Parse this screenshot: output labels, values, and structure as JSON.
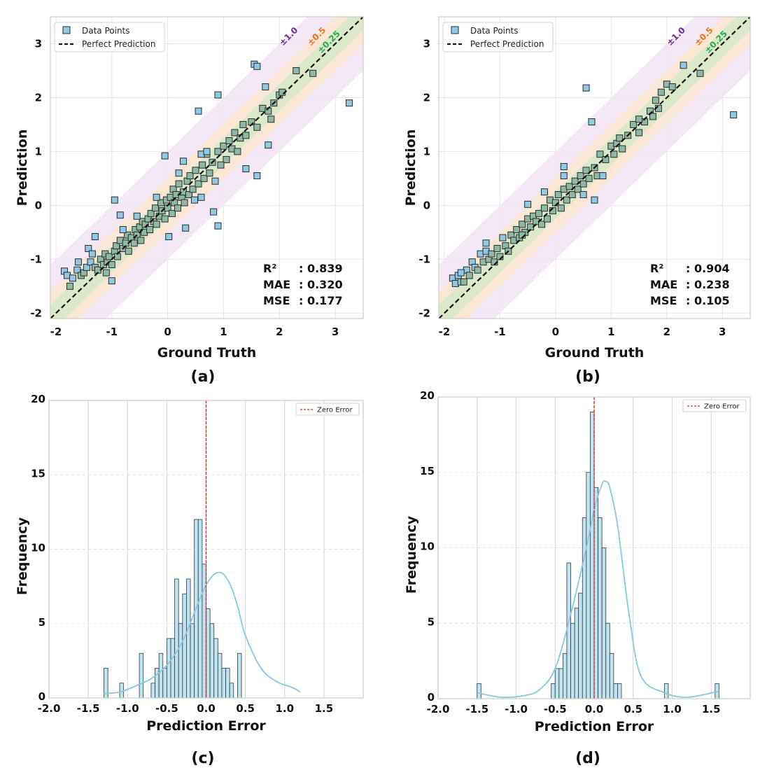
{
  "colors": {
    "point_fill": "#8ec9e6",
    "point_in_band_fill": "#8fb8a6",
    "point_stroke": "#2b2b2b",
    "band_1": "#f3e4f4",
    "band_05": "#fbe6cf",
    "band_025": "#d6e8c8",
    "label_1": "#6a2c9e",
    "label_05": "#e8731f",
    "label_025": "#1fae4a",
    "hist_fill": "#bfe4f0",
    "kde_line": "#86c8e3",
    "zero_line": "#d62728",
    "grid": "#d9d9d9"
  },
  "panels": [
    "(a)",
    "(b)",
    "(c)",
    "(d)"
  ],
  "chart_data": [
    {
      "id": "a",
      "type": "scatter",
      "panel_label": "(a)",
      "xlabel": "Ground Truth",
      "ylabel": "Prediction",
      "xlim": [
        -2.1,
        3.5
      ],
      "ylim": [
        -2.1,
        3.5
      ],
      "xticks": [
        "-2",
        "-1",
        "0",
        "1",
        "2",
        "3"
      ],
      "yticks": [
        "-2",
        "-1",
        "0",
        "1",
        "2",
        "3"
      ],
      "legend": [
        "Data Points",
        "Perfect Prediction"
      ],
      "legend_position": "top-left",
      "bands": [
        "±1.0",
        "±0.5",
        "±0.25"
      ],
      "metrics": [
        {
          "name": "R²",
          "value": ": 0.839"
        },
        {
          "name": "MAE",
          "value": ": 0.320"
        },
        {
          "name": "MSE",
          "value": ": 0.177"
        }
      ],
      "outliers": [
        [
          -0.95,
          0.1
        ],
        [
          0.9,
          -0.38
        ],
        [
          3.25,
          1.9
        ],
        [
          0.9,
          2.05
        ],
        [
          0.55,
          1.75
        ],
        [
          1.8,
          1.12
        ],
        [
          1.4,
          0.68
        ],
        [
          1.6,
          0.55
        ],
        [
          -0.05,
          0.92
        ],
        [
          0.28,
          0.82
        ],
        [
          0.7,
          1.0
        ],
        [
          1.75,
          2.2
        ],
        [
          -1.0,
          -1.4
        ],
        [
          0.32,
          -0.42
        ],
        [
          -0.85,
          -0.18
        ],
        [
          0.02,
          -0.58
        ],
        [
          1.55,
          2.62
        ],
        [
          1.6,
          2.58
        ],
        [
          0.82,
          -0.12
        ],
        [
          -1.3,
          -0.58
        ]
      ],
      "points": [
        [
          -1.85,
          -1.22
        ],
        [
          -1.8,
          -1.3
        ],
        [
          -1.75,
          -1.5
        ],
        [
          -1.7,
          -1.35
        ],
        [
          -1.62,
          -1.2
        ],
        [
          -1.55,
          -1.3
        ],
        [
          -1.5,
          -1.25
        ],
        [
          -1.45,
          -1.15
        ],
        [
          -1.42,
          -0.8
        ],
        [
          -1.38,
          -1.05
        ],
        [
          -1.35,
          -0.9
        ],
        [
          -1.3,
          -1.15
        ],
        [
          -1.25,
          -1.2
        ],
        [
          -1.2,
          -1.0
        ],
        [
          -1.15,
          -1.1
        ],
        [
          -1.12,
          -0.9
        ],
        [
          -1.08,
          -1.05
        ],
        [
          -1.05,
          -0.95
        ],
        [
          -1.0,
          -1.1
        ],
        [
          -0.95,
          -0.85
        ],
        [
          -0.92,
          -0.75
        ],
        [
          -0.9,
          -0.95
        ],
        [
          -0.85,
          -0.65
        ],
        [
          -0.8,
          -0.8
        ],
        [
          -0.75,
          -0.7
        ],
        [
          -0.72,
          -0.55
        ],
        [
          -0.7,
          -0.85
        ],
        [
          -0.65,
          -0.6
        ],
        [
          -0.6,
          -0.7
        ],
        [
          -0.58,
          -0.45
        ],
        [
          -0.55,
          -0.55
        ],
        [
          -0.5,
          -0.4
        ],
        [
          -0.48,
          -0.65
        ],
        [
          -0.45,
          -0.3
        ],
        [
          -0.42,
          -0.5
        ],
        [
          -0.4,
          -0.35
        ],
        [
          -0.35,
          -0.25
        ],
        [
          -0.32,
          -0.45
        ],
        [
          -0.3,
          -0.15
        ],
        [
          -0.25,
          -0.3
        ],
        [
          -0.22,
          -0.05
        ],
        [
          -0.2,
          -0.35
        ],
        [
          -0.15,
          -0.2
        ],
        [
          -0.12,
          0.05
        ],
        [
          -0.1,
          -0.1
        ],
        [
          -0.05,
          -0.25
        ],
        [
          -0.02,
          0.1
        ],
        [
          0.0,
          -0.05
        ],
        [
          0.05,
          0.15
        ],
        [
          0.08,
          -0.15
        ],
        [
          0.1,
          0.3
        ],
        [
          0.12,
          0.05
        ],
        [
          0.15,
          0.2
        ],
        [
          0.18,
          -0.05
        ],
        [
          0.2,
          0.4
        ],
        [
          0.25,
          0.15
        ],
        [
          0.28,
          0.25
        ],
        [
          0.3,
          0.05
        ],
        [
          0.35,
          0.45
        ],
        [
          0.38,
          0.2
        ],
        [
          0.4,
          0.55
        ],
        [
          0.45,
          0.3
        ],
        [
          0.48,
          0.1
        ],
        [
          0.5,
          0.65
        ],
        [
          0.55,
          0.4
        ],
        [
          0.6,
          0.15
        ],
        [
          0.62,
          0.75
        ],
        [
          0.65,
          0.5
        ],
        [
          0.7,
          0.95
        ],
        [
          0.75,
          0.6
        ],
        [
          0.8,
          0.8
        ],
        [
          0.85,
          0.45
        ],
        [
          0.9,
          1.0
        ],
        [
          1.0,
          1.1
        ],
        [
          1.05,
          0.85
        ],
        [
          1.1,
          1.2
        ],
        [
          1.15,
          1.05
        ],
        [
          1.2,
          1.35
        ],
        [
          1.3,
          1.25
        ],
        [
          1.35,
          1.5
        ],
        [
          1.4,
          1.3
        ],
        [
          1.5,
          1.55
        ],
        [
          1.6,
          1.45
        ],
        [
          1.7,
          1.8
        ],
        [
          1.8,
          1.75
        ],
        [
          1.85,
          1.6
        ],
        [
          1.9,
          1.9
        ],
        [
          2.0,
          2.05
        ],
        [
          2.05,
          2.1
        ],
        [
          2.3,
          2.5
        ],
        [
          2.6,
          2.45
        ],
        [
          -1.6,
          -1.05
        ],
        [
          -0.55,
          -0.2
        ],
        [
          0.2,
          0.6
        ],
        [
          0.6,
          0.95
        ],
        [
          -0.2,
          0.15
        ],
        [
          -0.8,
          -0.45
        ],
        [
          -1.1,
          -1.25
        ],
        [
          0.95,
          0.75
        ],
        [
          1.25,
          1.0
        ]
      ]
    },
    {
      "id": "b",
      "type": "scatter",
      "panel_label": "(b)",
      "xlabel": "Ground Truth",
      "ylabel": "Prediction",
      "xlim": [
        -2.1,
        3.5
      ],
      "ylim": [
        -2.1,
        3.5
      ],
      "xticks": [
        "-2",
        "-1",
        "0",
        "1",
        "2",
        "3"
      ],
      "yticks": [
        "-2",
        "-1",
        "0",
        "1",
        "2",
        "3"
      ],
      "legend": [
        "Data Points",
        "Perfect Prediction"
      ],
      "legend_position": "top-left",
      "bands": [
        "±1.0",
        "±0.5",
        "±0.25"
      ],
      "metrics": [
        {
          "name": "R²",
          "value": ": 0.904"
        },
        {
          "name": "MAE",
          "value": ": 0.238"
        },
        {
          "name": "MSE",
          "value": ": 0.105"
        }
      ],
      "outliers": [
        [
          3.2,
          1.68
        ],
        [
          0.55,
          2.18
        ],
        [
          0.65,
          1.55
        ],
        [
          0.7,
          0.1
        ],
        [
          0.15,
          0.72
        ],
        [
          -0.5,
          0.02
        ]
      ],
      "points": [
        [
          -1.85,
          -1.35
        ],
        [
          -1.8,
          -1.45
        ],
        [
          -1.75,
          -1.3
        ],
        [
          -1.7,
          -1.42
        ],
        [
          -1.65,
          -1.42
        ],
        [
          -1.6,
          -1.2
        ],
        [
          -1.55,
          -1.3
        ],
        [
          -1.5,
          -1.05
        ],
        [
          -1.45,
          -1.15
        ],
        [
          -1.4,
          -1.2
        ],
        [
          -1.35,
          -0.9
        ],
        [
          -1.3,
          -1.05
        ],
        [
          -1.25,
          -0.85
        ],
        [
          -1.2,
          -1.0
        ],
        [
          -1.15,
          -0.9
        ],
        [
          -1.1,
          -1.05
        ],
        [
          -1.05,
          -0.8
        ],
        [
          -1.0,
          -0.95
        ],
        [
          -0.95,
          -0.6
        ],
        [
          -0.9,
          -0.75
        ],
        [
          -0.85,
          -0.85
        ],
        [
          -0.8,
          -0.55
        ],
        [
          -0.75,
          -0.65
        ],
        [
          -0.7,
          -0.45
        ],
        [
          -0.65,
          -0.6
        ],
        [
          -0.6,
          -0.35
        ],
        [
          -0.55,
          -0.5
        ],
        [
          -0.5,
          -0.25
        ],
        [
          -0.45,
          -0.4
        ],
        [
          -0.4,
          -0.2
        ],
        [
          -0.35,
          -0.3
        ],
        [
          -0.3,
          -0.15
        ],
        [
          -0.25,
          -0.35
        ],
        [
          -0.2,
          -0.05
        ],
        [
          -0.15,
          -0.25
        ],
        [
          -0.1,
          0.1
        ],
        [
          -0.05,
          -0.1
        ],
        [
          0.0,
          0.05
        ],
        [
          0.05,
          0.2
        ],
        [
          0.1,
          -0.05
        ],
        [
          0.15,
          0.3
        ],
        [
          0.2,
          0.1
        ],
        [
          0.25,
          0.35
        ],
        [
          0.3,
          0.2
        ],
        [
          0.35,
          0.45
        ],
        [
          0.4,
          0.3
        ],
        [
          0.45,
          0.55
        ],
        [
          0.5,
          0.4
        ],
        [
          0.55,
          0.65
        ],
        [
          0.6,
          0.5
        ],
        [
          0.7,
          0.7
        ],
        [
          0.75,
          0.55
        ],
        [
          0.8,
          0.95
        ],
        [
          0.9,
          0.85
        ],
        [
          1.0,
          1.1
        ],
        [
          1.05,
          0.95
        ],
        [
          1.1,
          1.15
        ],
        [
          1.2,
          1.05
        ],
        [
          1.3,
          1.3
        ],
        [
          1.4,
          1.5
        ],
        [
          1.5,
          1.35
        ],
        [
          1.6,
          1.55
        ],
        [
          1.7,
          1.75
        ],
        [
          1.75,
          1.65
        ],
        [
          1.8,
          1.95
        ],
        [
          1.9,
          2.1
        ],
        [
          2.0,
          2.25
        ],
        [
          2.1,
          2.2
        ],
        [
          2.3,
          2.6
        ],
        [
          2.6,
          2.45
        ],
        [
          -1.7,
          -1.25
        ],
        [
          -1.25,
          -0.7
        ],
        [
          -0.6,
          -0.55
        ],
        [
          0.15,
          0.55
        ],
        [
          0.5,
          0.2
        ],
        [
          1.15,
          1.25
        ],
        [
          1.5,
          1.6
        ],
        [
          1.85,
          1.8
        ],
        [
          -0.2,
          0.25
        ],
        [
          0.85,
          0.55
        ]
      ]
    },
    {
      "id": "c",
      "type": "bar",
      "subtype": "histogram",
      "panel_label": "(c)",
      "xlabel": "Prediction Error",
      "ylabel": "Frequency",
      "xlim": [
        -2.0,
        2.0
      ],
      "ylim": [
        0,
        20
      ],
      "xticks": [
        "-2.0",
        "-1.5",
        "-1.0",
        "-0.5",
        "0.0",
        "0.5",
        "1.0",
        "1.5"
      ],
      "yticks": [
        "0",
        "5",
        "10",
        "15",
        "20"
      ],
      "legend": [
        "Zero Error"
      ],
      "legend_position": "top-right",
      "bin_start": -1.35,
      "bin_width": 0.05,
      "counts": [
        0,
        2,
        0,
        0,
        0,
        1,
        0,
        0,
        0,
        0,
        3,
        0,
        0,
        1,
        2,
        3,
        2,
        4,
        4,
        8,
        5,
        7,
        8,
        5,
        12,
        12,
        9,
        6,
        5,
        4,
        3,
        2,
        2,
        1,
        0,
        3,
        0,
        0,
        0,
        0
      ],
      "kde_x": [
        -1.3,
        -1.1,
        -0.9,
        -0.7,
        -0.5,
        -0.3,
        -0.1,
        0.0,
        0.1,
        0.2,
        0.3,
        0.4,
        0.5,
        0.7,
        0.9,
        1.1,
        1.2
      ],
      "kde_y": [
        0.3,
        0.4,
        0.8,
        1.3,
        2.2,
        3.8,
        6.4,
        7.6,
        8.3,
        8.4,
        7.7,
        6.2,
        4.2,
        2.0,
        1.1,
        0.7,
        0.4
      ]
    },
    {
      "id": "d",
      "type": "bar",
      "subtype": "histogram",
      "panel_label": "(d)",
      "xlabel": "Prediction Error",
      "ylabel": "Frequency",
      "xlim": [
        -2.0,
        2.0
      ],
      "ylim": [
        0,
        20
      ],
      "xticks": [
        "-2.0",
        "-1.5",
        "-1.0",
        "-0.5",
        "0.0",
        "0.5",
        "1.0",
        "1.5"
      ],
      "yticks": [
        "0",
        "5",
        "10",
        "15",
        "20"
      ],
      "legend": [
        "Zero Error"
      ],
      "legend_position": "top-right",
      "bin_start": -1.55,
      "bin_width": 0.05,
      "counts": [
        0,
        1,
        0,
        0,
        0,
        0,
        0,
        0,
        0,
        0,
        0,
        0,
        0,
        0,
        0,
        0,
        0,
        0,
        0,
        0,
        1,
        2,
        2,
        3,
        9,
        5,
        6,
        7,
        12,
        15,
        19,
        14,
        12,
        10,
        5,
        3,
        1,
        1,
        0,
        0,
        0,
        0,
        0,
        0,
        0,
        0,
        0,
        0,
        0,
        1,
        0,
        0,
        0,
        0,
        0,
        0,
        0,
        0,
        0,
        0,
        0,
        0,
        1,
        0
      ],
      "kde_x": [
        -1.5,
        -1.2,
        -0.9,
        -0.7,
        -0.5,
        -0.3,
        -0.1,
        0.0,
        0.1,
        0.15,
        0.2,
        0.3,
        0.45,
        0.6,
        0.9,
        1.2,
        1.6
      ],
      "kde_y": [
        0.4,
        0.1,
        0.2,
        0.6,
        2.0,
        5.6,
        10.0,
        12.5,
        14.2,
        14.4,
        14.0,
        11.5,
        5.5,
        1.5,
        0.4,
        0.1,
        0.5
      ]
    }
  ]
}
